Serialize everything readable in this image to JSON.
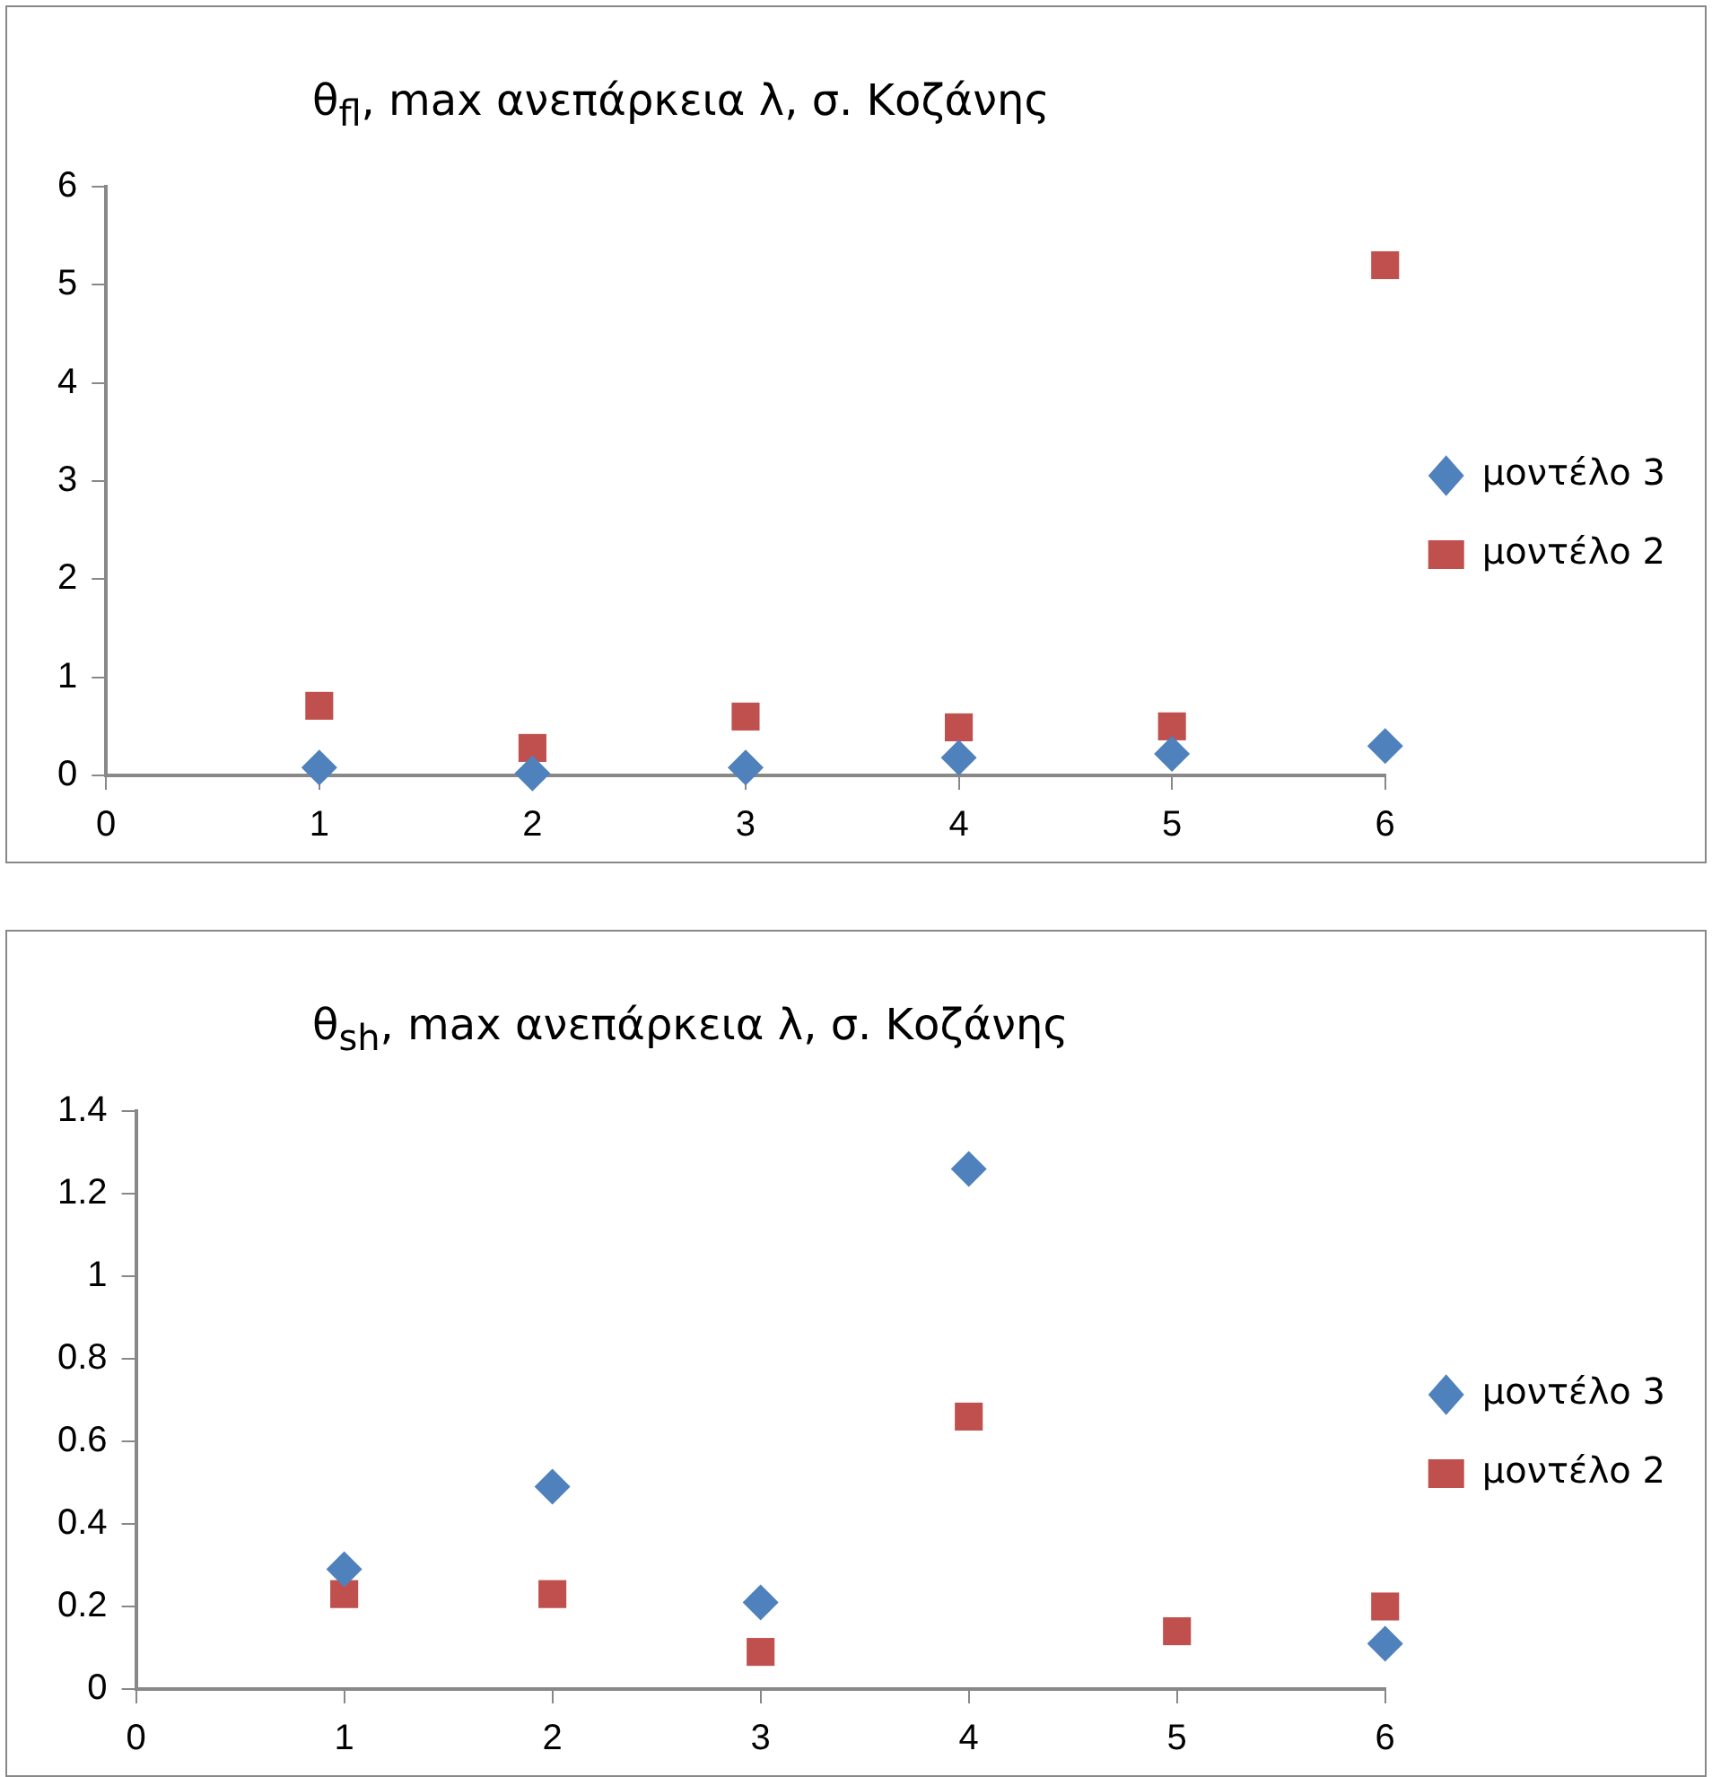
{
  "chart_data": [
    {
      "type": "scatter",
      "title": "θ$_{fl}$, max ανεπάρκεια λ, σ. Κοζάνης",
      "x": [
        1,
        2,
        3,
        4,
        5,
        6
      ],
      "xlim": [
        0,
        6
      ],
      "xticks": [
        0,
        1,
        2,
        3,
        4,
        5,
        6
      ],
      "ylim": [
        0,
        6
      ],
      "yticks": [
        0,
        1,
        2,
        3,
        4,
        5,
        6
      ],
      "grid": false,
      "legend": "right",
      "series": [
        {
          "name": "μοντέλο 3",
          "color": "#4f81bd",
          "marker": "diamond",
          "values": [
            0.08,
            0.02,
            0.08,
            0.18,
            0.22,
            0.3
          ]
        },
        {
          "name": "μοντέλο 2",
          "color": "#c0504d",
          "marker": "square",
          "values": [
            0.71,
            0.28,
            0.6,
            0.49,
            0.5,
            5.2
          ]
        }
      ]
    },
    {
      "type": "scatter",
      "title": "θ$_{sh}$, max ανεπάρκεια λ, σ. Κοζάνης",
      "x": [
        1,
        2,
        3,
        4,
        5,
        6
      ],
      "xlim": [
        0,
        6
      ],
      "xticks": [
        0,
        1,
        2,
        3,
        4,
        5,
        6
      ],
      "ylim": [
        0,
        1.4
      ],
      "yticks": [
        0,
        0.2,
        0.4,
        0.6,
        0.8,
        1,
        1.2,
        1.4
      ],
      "grid": false,
      "legend": "right",
      "series": [
        {
          "name": "μοντέλο 3",
          "color": "#4f81bd",
          "marker": "diamond",
          "values": [
            0.29,
            0.49,
            0.21,
            1.26,
            null,
            0.11
          ]
        },
        {
          "name": "μοντέλο 2",
          "color": "#c0504d",
          "marker": "square",
          "values": [
            0.23,
            0.23,
            0.09,
            0.66,
            0.14,
            0.2
          ]
        }
      ]
    }
  ]
}
